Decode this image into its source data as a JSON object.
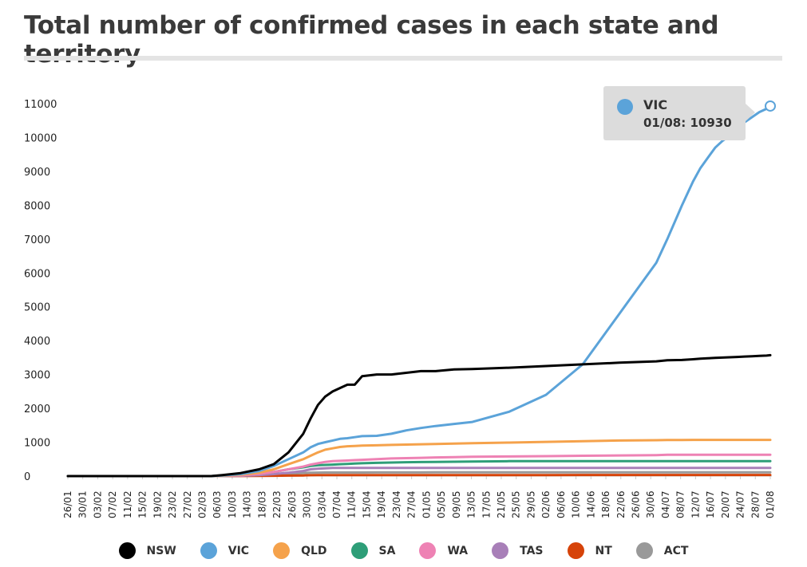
{
  "title": "Total number of confirmed cases in each state and territory",
  "tooltip": {
    "series": "VIC",
    "text": "01/08: 10930",
    "color": "#5ba3d9"
  },
  "chart_data": {
    "type": "line",
    "title": "Total number of confirmed cases in each state and territory",
    "xlabel": "",
    "ylabel": "",
    "ylim": [
      0,
      11000
    ],
    "yticks": [
      0,
      1000,
      2000,
      3000,
      4000,
      5000,
      6000,
      7000,
      8000,
      9000,
      10000,
      11000
    ],
    "x_tick_labels": [
      "26/01",
      "30/01",
      "03/02",
      "07/02",
      "11/02",
      "15/02",
      "19/02",
      "23/02",
      "27/02",
      "02/03",
      "06/03",
      "10/03",
      "14/03",
      "18/03",
      "22/03",
      "26/03",
      "30/03",
      "03/04",
      "07/04",
      "11/04",
      "15/04",
      "19/04",
      "23/04",
      "27/04",
      "01/05",
      "05/05",
      "09/05",
      "13/05",
      "17/05",
      "21/05",
      "25/05",
      "29/05",
      "02/06",
      "06/06",
      "10/06",
      "14/06",
      "18/06",
      "22/06",
      "26/06",
      "30/06",
      "04/07",
      "08/07",
      "12/07",
      "16/07",
      "20/07",
      "24/07",
      "28/07",
      "01/08"
    ],
    "x_days": [
      0,
      39,
      42,
      47,
      52,
      56,
      60,
      64,
      66,
      68,
      70,
      72,
      74,
      76,
      78,
      80,
      84,
      88,
      92,
      96,
      100,
      105,
      110,
      120,
      130,
      140,
      150,
      160,
      163,
      167,
      170,
      172,
      174,
      176,
      178,
      180,
      182,
      184,
      186,
      188,
      190,
      191
    ],
    "series": [
      {
        "name": "NSW",
        "color": "#000000",
        "values": [
          0,
          0,
          30,
          90,
          200,
          350,
          700,
          1250,
          1700,
          2100,
          2350,
          2500,
          2600,
          2700,
          2700,
          2950,
          3000,
          3000,
          3050,
          3100,
          3100,
          3150,
          3160,
          3200,
          3250,
          3300,
          3350,
          3390,
          3420,
          3430,
          3450,
          3470,
          3480,
          3490,
          3500,
          3510,
          3520,
          3530,
          3540,
          3550,
          3560,
          3570
        ]
      },
      {
        "name": "VIC",
        "color": "#5ba3d9",
        "values": [
          0,
          0,
          20,
          60,
          150,
          300,
          500,
          700,
          850,
          950,
          1000,
          1050,
          1100,
          1120,
          1150,
          1180,
          1190,
          1250,
          1350,
          1420,
          1480,
          1540,
          1600,
          1900,
          2400,
          3300,
          4800,
          6300,
          7000,
          8000,
          8700,
          9100,
          9400,
          9700,
          9900,
          10050,
          10250,
          10450,
          10600,
          10750,
          10850,
          10930
        ]
      },
      {
        "name": "QLD",
        "color": "#f5a24b",
        "values": [
          0,
          0,
          10,
          40,
          100,
          200,
          350,
          500,
          600,
          700,
          780,
          820,
          860,
          880,
          890,
          900,
          910,
          920,
          930,
          940,
          950,
          960,
          970,
          990,
          1010,
          1030,
          1050,
          1060,
          1065,
          1068,
          1070,
          1070,
          1070,
          1070,
          1070,
          1070,
          1070,
          1070,
          1070,
          1070,
          1070,
          1070
        ]
      },
      {
        "name": "SA",
        "color": "#2e9e78",
        "values": [
          0,
          0,
          5,
          20,
          60,
          120,
          200,
          260,
          300,
          320,
          330,
          340,
          350,
          360,
          370,
          380,
          390,
          400,
          410,
          415,
          420,
          425,
          430,
          440,
          440,
          440,
          440,
          440,
          440,
          440,
          440,
          440,
          440,
          440,
          440,
          440,
          440,
          440,
          440,
          440,
          440,
          440
        ]
      },
      {
        "name": "WA",
        "color": "#ee82b4",
        "values": [
          0,
          0,
          5,
          20,
          60,
          120,
          200,
          280,
          340,
          380,
          420,
          440,
          450,
          460,
          470,
          480,
          500,
          520,
          530,
          540,
          550,
          560,
          570,
          580,
          590,
          600,
          610,
          620,
          630,
          630,
          630,
          630,
          630,
          630,
          630,
          630,
          630,
          630,
          630,
          630,
          630,
          630
        ]
      },
      {
        "name": "TAS",
        "color": "#a87fb8",
        "values": [
          0,
          0,
          2,
          10,
          30,
          60,
          100,
          150,
          200,
          220,
          230,
          240,
          240,
          240,
          240,
          240,
          240,
          240,
          240,
          240,
          240,
          240,
          240,
          240,
          240,
          240,
          240,
          240,
          240,
          240,
          240,
          240,
          240,
          240,
          240,
          240,
          240,
          240,
          240,
          240,
          240,
          240
        ]
      },
      {
        "name": "NT",
        "color": "#d64309",
        "values": [
          0,
          0,
          1,
          3,
          5,
          10,
          15,
          20,
          25,
          28,
          29,
          29,
          29,
          29,
          29,
          29,
          29,
          30,
          30,
          30,
          30,
          30,
          31,
          31,
          31,
          32,
          32,
          32,
          32,
          32,
          32,
          32,
          33,
          33,
          33,
          33,
          33,
          33,
          33,
          33,
          33,
          33
        ]
      },
      {
        "name": "ACT",
        "color": "#999999",
        "values": [
          0,
          0,
          2,
          10,
          30,
          50,
          70,
          90,
          100,
          103,
          105,
          106,
          107,
          107,
          107,
          107,
          108,
          108,
          108,
          108,
          110,
          110,
          110,
          110,
          111,
          113,
          113,
          113,
          113,
          113,
          113,
          113,
          113,
          113,
          113,
          113,
          113,
          113,
          113,
          113,
          113,
          113
        ]
      }
    ]
  }
}
